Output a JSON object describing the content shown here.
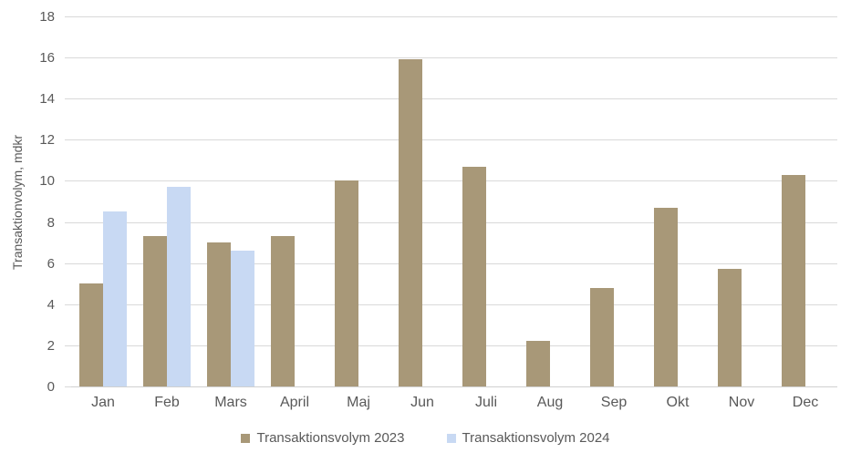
{
  "chart_data": {
    "type": "bar",
    "title": "",
    "ylabel": "Transaktionvolym, mdkr",
    "xlabel": "",
    "categories": [
      "Jan",
      "Feb",
      "Mars",
      "April",
      "Maj",
      "Jun",
      "Juli",
      "Aug",
      "Sep",
      "Okt",
      "Nov",
      "Dec"
    ],
    "series": [
      {
        "name": "Transaktionsvolym 2023",
        "color": "#a89878",
        "values": [
          5.0,
          7.3,
          7.0,
          7.3,
          10.0,
          15.9,
          10.7,
          2.2,
          4.8,
          8.7,
          5.7,
          10.3
        ]
      },
      {
        "name": "Transaktionsvolym 2024",
        "color": "#c8d9f3",
        "values": [
          8.5,
          9.7,
          6.6,
          null,
          null,
          null,
          null,
          null,
          null,
          null,
          null,
          null
        ]
      }
    ],
    "ylim": [
      0,
      18
    ],
    "ytick_step": 2,
    "yticks": [
      0,
      2,
      4,
      6,
      8,
      10,
      12,
      14,
      16,
      18
    ],
    "grid": "horizontal",
    "legend_position": "bottom"
  },
  "colors": {
    "gridline": "#d9d9d9",
    "axis_line": "#d0d0d0",
    "axis_text": "#595959",
    "background": "#ffffff"
  }
}
